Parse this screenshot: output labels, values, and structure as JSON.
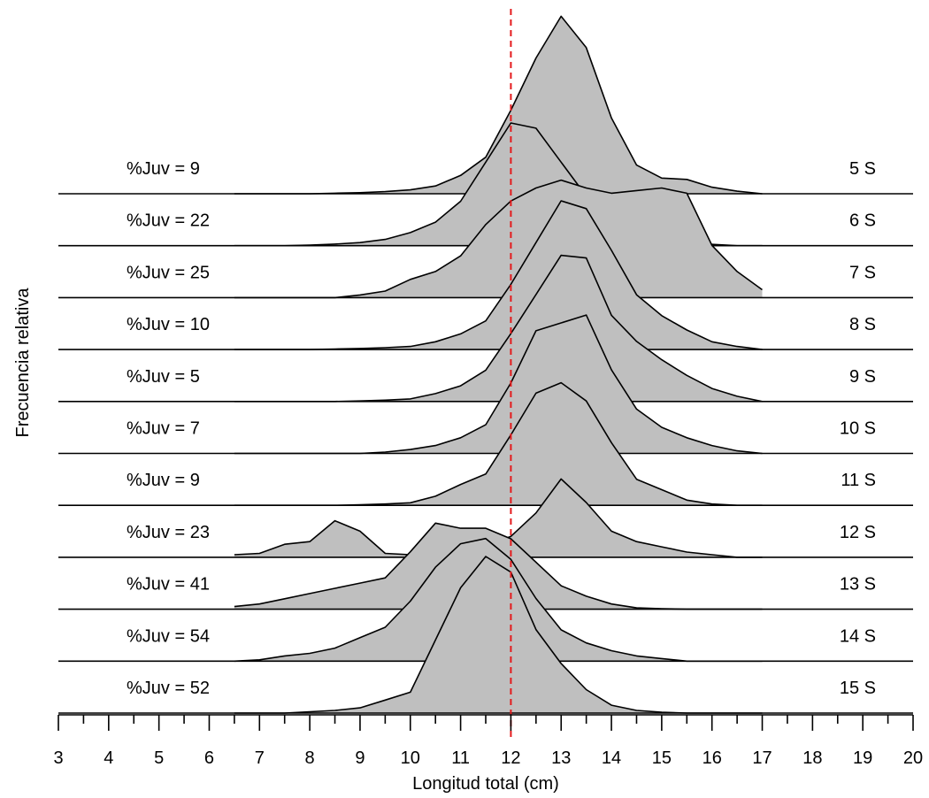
{
  "chart_data": {
    "type": "area",
    "xlabel": "Longitud total (cm)",
    "ylabel": "Frecuencia relativa",
    "xlim": [
      3,
      20
    ],
    "xticks": [
      "3",
      "4",
      "5",
      "6",
      "7",
      "8",
      "9",
      "10",
      "11",
      "12",
      "13",
      "14",
      "15",
      "16",
      "17",
      "18",
      "19",
      "20"
    ],
    "reference_line": {
      "x": 12,
      "color": "#e41a1c",
      "style": "dashed"
    },
    "fill_color": "#bfbfbf",
    "grid": false,
    "x": [
      6.5,
      7,
      7.5,
      8,
      8.5,
      9,
      9.5,
      10,
      10.5,
      11,
      11.5,
      12,
      12.5,
      13,
      13.5,
      14,
      14.5,
      15,
      15.5,
      16,
      16.5,
      17
    ],
    "series": [
      {
        "name": "5 S",
        "juv_label": "%Juv = 9",
        "values": [
          0,
          0,
          0,
          0,
          0.002,
          0.004,
          0.008,
          0.015,
          0.03,
          0.07,
          0.14,
          0.32,
          0.52,
          0.68,
          0.56,
          0.29,
          0.11,
          0.06,
          0.055,
          0.025,
          0.01,
          0
        ]
      },
      {
        "name": "6 S",
        "juv_label": "%Juv = 22",
        "values": [
          0,
          0,
          0,
          0.002,
          0.006,
          0.012,
          0.024,
          0.05,
          0.09,
          0.17,
          0.32,
          0.47,
          0.45,
          0.32,
          0.19,
          0.13,
          0.06,
          0.02,
          0.01,
          0.005,
          0,
          0
        ]
      },
      {
        "name": "7 S",
        "juv_label": "%Juv = 25",
        "values": [
          0,
          0,
          0,
          0,
          0,
          0.01,
          0.025,
          0.07,
          0.1,
          0.16,
          0.28,
          0.37,
          0.42,
          0.45,
          0.42,
          0.4,
          0.41,
          0.42,
          0.4,
          0.2,
          0.1,
          0.03
        ]
      },
      {
        "name": "8 S",
        "juv_label": "%Juv = 10",
        "values": [
          0,
          0,
          0,
          0,
          0.002,
          0.004,
          0.007,
          0.012,
          0.03,
          0.06,
          0.11,
          0.25,
          0.41,
          0.57,
          0.54,
          0.38,
          0.21,
          0.13,
          0.075,
          0.03,
          0.012,
          0
        ]
      },
      {
        "name": "9 S",
        "juv_label": "%Juv = 5",
        "values": [
          0,
          0,
          0,
          0,
          0,
          0.002,
          0.005,
          0.01,
          0.03,
          0.06,
          0.12,
          0.26,
          0.41,
          0.56,
          0.55,
          0.33,
          0.23,
          0.16,
          0.1,
          0.05,
          0.02,
          0
        ]
      },
      {
        "name": "10 S",
        "juv_label": "%Juv = 7",
        "values": [
          0,
          0,
          0,
          0,
          0,
          0,
          0.005,
          0.015,
          0.03,
          0.06,
          0.11,
          0.27,
          0.47,
          0.5,
          0.53,
          0.32,
          0.17,
          0.1,
          0.06,
          0.03,
          0.01,
          0
        ]
      },
      {
        "name": "11 S",
        "juv_label": "%Juv = 9",
        "values": [
          0,
          0,
          0,
          0,
          0,
          0.002,
          0.005,
          0.01,
          0.035,
          0.08,
          0.12,
          0.27,
          0.43,
          0.47,
          0.4,
          0.24,
          0.1,
          0.06,
          0.02,
          0.005,
          0,
          0
        ]
      },
      {
        "name": "12 S",
        "juv_label": "%Juv = 23",
        "values": [
          0.01,
          0.015,
          0.05,
          0.06,
          0.14,
          0.1,
          0.015,
          0.01,
          0.01,
          0.02,
          0.04,
          0.08,
          0.17,
          0.3,
          0.21,
          0.1,
          0.06,
          0.04,
          0.02,
          0.01,
          0,
          0
        ]
      },
      {
        "name": "13 S",
        "juv_label": "%Juv = 41",
        "values": [
          0.01,
          0.02,
          0.04,
          0.06,
          0.08,
          0.1,
          0.12,
          0.22,
          0.33,
          0.31,
          0.31,
          0.27,
          0.18,
          0.09,
          0.05,
          0.02,
          0.005,
          0.002,
          0,
          0,
          0,
          0
        ]
      },
      {
        "name": "14 S",
        "juv_label": "%Juv = 54",
        "values": [
          0,
          0.005,
          0.02,
          0.03,
          0.05,
          0.09,
          0.13,
          0.23,
          0.36,
          0.45,
          0.47,
          0.39,
          0.24,
          0.12,
          0.07,
          0.04,
          0.02,
          0.01,
          0,
          0,
          0,
          0
        ]
      },
      {
        "name": "15 S",
        "juv_label": "%Juv = 52",
        "values": [
          0,
          0,
          0,
          0.005,
          0.01,
          0.02,
          0.05,
          0.08,
          0.28,
          0.48,
          0.6,
          0.54,
          0.32,
          0.19,
          0.09,
          0.03,
          0.01,
          0.003,
          0,
          0,
          0,
          0
        ]
      }
    ]
  }
}
